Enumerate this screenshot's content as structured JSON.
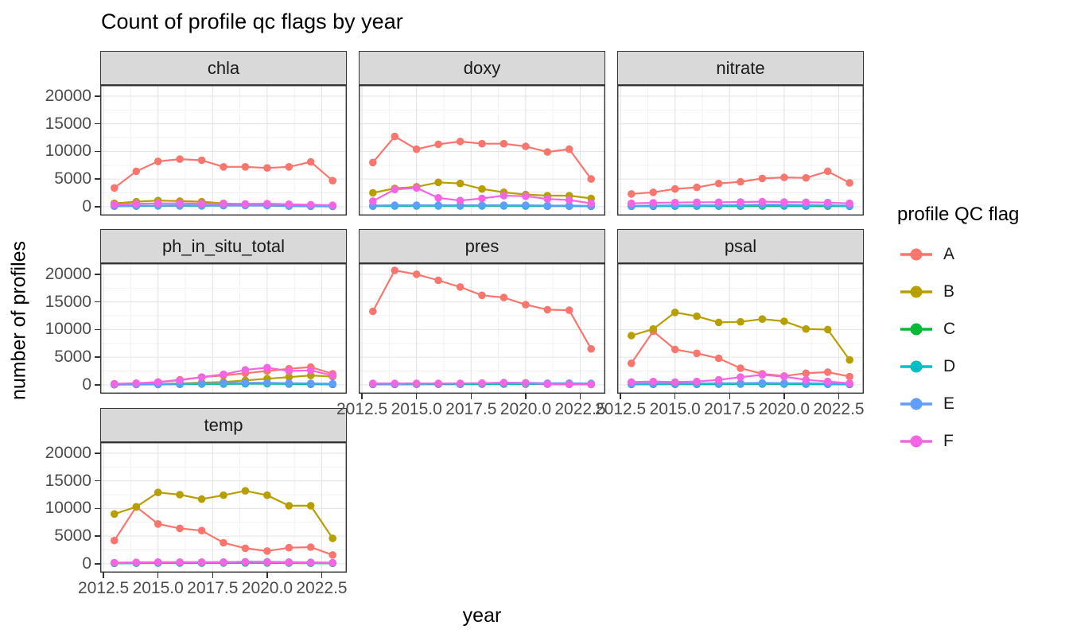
{
  "title": "Count of profile qc flags by year",
  "axes": {
    "x_label": "year",
    "y_label": "number of profiles",
    "x_ticks": [
      "2012.5",
      "2015.0",
      "2017.5",
      "2020.0",
      "2022.5"
    ],
    "x_tick_values": [
      2012.5,
      2015.0,
      2017.5,
      2020.0,
      2022.5
    ],
    "y_ticks": [
      "20000",
      "15000",
      "10000",
      "5000",
      "0"
    ],
    "y_tick_values": [
      20000,
      15000,
      10000,
      5000,
      0
    ]
  },
  "legend": {
    "title": "profile QC flag",
    "entries": [
      {
        "label": "A",
        "color": "#F8766D"
      },
      {
        "label": "B",
        "color": "#B79F00"
      },
      {
        "label": "C",
        "color": "#00BA38"
      },
      {
        "label": "D",
        "color": "#00BFC4"
      },
      {
        "label": "E",
        "color": "#619CFF"
      },
      {
        "label": "F",
        "color": "#F564E3"
      }
    ]
  },
  "chart_data": {
    "type": "line",
    "title": "Count of profile qc flags by year",
    "xlabel": "year",
    "ylabel": "number of profiles",
    "x": [
      2013,
      2014,
      2015,
      2016,
      2017,
      2018,
      2019,
      2020,
      2021,
      2022,
      2023
    ],
    "xlim": [
      2012.35,
      2023.65
    ],
    "ylim": [
      -1600,
      22000
    ],
    "grid": true,
    "legend_position": "right",
    "facet_columns": 3,
    "facets": [
      {
        "name": "chla",
        "series": [
          {
            "name": "A",
            "color": "#F8766D",
            "values": [
              3400,
              6400,
              8200,
              8600,
              8400,
              7200,
              7200,
              7000,
              7200,
              8100,
              4700
            ]
          },
          {
            "name": "B",
            "color": "#B79F00",
            "values": [
              600,
              900,
              1100,
              1000,
              900,
              600,
              400,
              300,
              200,
              150,
              100
            ]
          },
          {
            "name": "C",
            "color": "#00BA38",
            "values": [
              100,
              100,
              150,
              150,
              150,
              200,
              250,
              200,
              100,
              80,
              50
            ]
          },
          {
            "name": "D",
            "color": "#00BFC4",
            "values": [
              150,
              150,
              200,
              250,
              200,
              250,
              300,
              250,
              150,
              100,
              80
            ]
          },
          {
            "name": "E",
            "color": "#619CFF",
            "values": [
              100,
              150,
              200,
              200,
              200,
              200,
              200,
              200,
              150,
              120,
              100
            ]
          },
          {
            "name": "F",
            "color": "#F564E3",
            "values": [
              400,
              500,
              600,
              600,
              550,
              550,
              500,
              550,
              450,
              350,
              250
            ]
          }
        ]
      },
      {
        "name": "doxy",
        "series": [
          {
            "name": "A",
            "color": "#F8766D",
            "values": [
              8000,
              12700,
              10400,
              11300,
              11800,
              11400,
              11400,
              10900,
              9900,
              10400,
              5000
            ]
          },
          {
            "name": "B",
            "color": "#B79F00",
            "values": [
              2500,
              3300,
              3600,
              4400,
              4200,
              3200,
              2600,
              2200,
              2000,
              2000,
              1500
            ]
          },
          {
            "name": "C",
            "color": "#00BA38",
            "values": [
              100,
              120,
              150,
              150,
              150,
              150,
              150,
              120,
              100,
              100,
              80
            ]
          },
          {
            "name": "D",
            "color": "#00BFC4",
            "values": [
              150,
              150,
              200,
              200,
              200,
              200,
              200,
              150,
              150,
              120,
              100
            ]
          },
          {
            "name": "E",
            "color": "#619CFF",
            "values": [
              200,
              250,
              250,
              250,
              250,
              250,
              250,
              250,
              200,
              200,
              150
            ]
          },
          {
            "name": "F",
            "color": "#F564E3",
            "values": [
              1000,
              3100,
              3400,
              1600,
              1100,
              1500,
              2000,
              1900,
              1400,
              1200,
              600
            ]
          }
        ]
      },
      {
        "name": "nitrate",
        "series": [
          {
            "name": "A",
            "color": "#F8766D",
            "values": [
              2300,
              2600,
              3200,
              3500,
              4200,
              4500,
              5100,
              5300,
              5200,
              6400,
              4300
            ]
          },
          {
            "name": "B",
            "color": "#B79F00",
            "values": [
              100,
              150,
              200,
              200,
              200,
              250,
              250,
              250,
              200,
              200,
              150
            ]
          },
          {
            "name": "C",
            "color": "#00BA38",
            "values": [
              80,
              80,
              100,
              100,
              100,
              100,
              120,
              120,
              100,
              100,
              80
            ]
          },
          {
            "name": "D",
            "color": "#00BFC4",
            "values": [
              100,
              120,
              150,
              150,
              150,
              200,
              250,
              200,
              150,
              250,
              100
            ]
          },
          {
            "name": "E",
            "color": "#619CFF",
            "values": [
              150,
              200,
              250,
              250,
              250,
              300,
              350,
              350,
              300,
              250,
              200
            ]
          },
          {
            "name": "F",
            "color": "#F564E3",
            "values": [
              600,
              700,
              750,
              800,
              800,
              850,
              900,
              850,
              800,
              750,
              600
            ]
          }
        ]
      },
      {
        "name": "ph_in_situ_total",
        "series": [
          {
            "name": "A",
            "color": "#F8766D",
            "values": [
              150,
              250,
              500,
              900,
              1400,
              1700,
              2100,
              2500,
              2900,
              3200,
              2000
            ]
          },
          {
            "name": "B",
            "color": "#B79F00",
            "values": [
              50,
              100,
              150,
              250,
              400,
              500,
              800,
              1100,
              1400,
              1700,
              1500
            ]
          },
          {
            "name": "C",
            "color": "#00BA38",
            "values": [
              30,
              50,
              80,
              100,
              150,
              150,
              200,
              200,
              150,
              100,
              80
            ]
          },
          {
            "name": "D",
            "color": "#00BFC4",
            "values": [
              50,
              80,
              100,
              150,
              200,
              200,
              250,
              250,
              200,
              150,
              100
            ]
          },
          {
            "name": "E",
            "color": "#619CFF",
            "values": [
              50,
              100,
              150,
              200,
              250,
              300,
              350,
              350,
              300,
              250,
              200
            ]
          },
          {
            "name": "F",
            "color": "#F564E3",
            "values": [
              200,
              300,
              500,
              800,
              1400,
              1900,
              2700,
              3100,
              2500,
              2600,
              1700
            ]
          }
        ]
      },
      {
        "name": "pres",
        "series": [
          {
            "name": "A",
            "color": "#F8766D",
            "values": [
              13300,
              20700,
              20000,
              18900,
              17700,
              16200,
              15800,
              14500,
              13600,
              13500,
              6500
            ]
          },
          {
            "name": "B",
            "color": "#B79F00",
            "values": [
              100,
              120,
              150,
              150,
              150,
              150,
              150,
              150,
              120,
              100,
              80
            ]
          },
          {
            "name": "C",
            "color": "#00BA38",
            "values": [
              80,
              80,
              100,
              100,
              100,
              120,
              150,
              150,
              120,
              100,
              80
            ]
          },
          {
            "name": "D",
            "color": "#00BFC4",
            "values": [
              100,
              100,
              120,
              150,
              150,
              150,
              150,
              150,
              120,
              100,
              80
            ]
          },
          {
            "name": "E",
            "color": "#619CFF",
            "values": [
              150,
              150,
              200,
              200,
              250,
              300,
              400,
              350,
              300,
              300,
              250
            ]
          },
          {
            "name": "F",
            "color": "#F564E3",
            "values": [
              250,
              250,
              250,
              250,
              250,
              300,
              350,
              300,
              150,
              100,
              80
            ]
          }
        ]
      },
      {
        "name": "psal",
        "series": [
          {
            "name": "A",
            "color": "#F8766D",
            "values": [
              3900,
              9700,
              6400,
              5700,
              4800,
              3000,
              2000,
              1600,
              2100,
              2300,
              1500
            ]
          },
          {
            "name": "B",
            "color": "#B79F00",
            "values": [
              8900,
              10100,
              13100,
              12400,
              11300,
              11400,
              11900,
              11500,
              10100,
              10000,
              4500
            ]
          },
          {
            "name": "C",
            "color": "#00BA38",
            "values": [
              80,
              100,
              100,
              100,
              120,
              150,
              150,
              150,
              120,
              100,
              80
            ]
          },
          {
            "name": "D",
            "color": "#00BFC4",
            "values": [
              100,
              120,
              150,
              150,
              150,
              200,
              200,
              200,
              150,
              120,
              100
            ]
          },
          {
            "name": "E",
            "color": "#619CFF",
            "values": [
              200,
              250,
              250,
              250,
              300,
              300,
              350,
              300,
              300,
              250,
              200
            ]
          },
          {
            "name": "F",
            "color": "#F564E3",
            "values": [
              500,
              600,
              500,
              600,
              900,
              1400,
              1800,
              1500,
              900,
              600,
              300
            ]
          }
        ]
      },
      {
        "name": "temp",
        "series": [
          {
            "name": "A",
            "color": "#F8766D",
            "values": [
              4200,
              10300,
              7200,
              6400,
              6000,
              3800,
              2800,
              2300,
              2900,
              3000,
              1600
            ]
          },
          {
            "name": "B",
            "color": "#B79F00",
            "values": [
              9000,
              10300,
              12900,
              12500,
              11700,
              12400,
              13200,
              12400,
              10500,
              10500,
              4600
            ]
          },
          {
            "name": "C",
            "color": "#00BA38",
            "values": [
              80,
              100,
              120,
              120,
              120,
              150,
              150,
              150,
              120,
              100,
              80
            ]
          },
          {
            "name": "D",
            "color": "#00BFC4",
            "values": [
              100,
              120,
              150,
              150,
              150,
              200,
              200,
              200,
              150,
              120,
              100
            ]
          },
          {
            "name": "E",
            "color": "#619CFF",
            "values": [
              150,
              200,
              250,
              250,
              250,
              300,
              350,
              350,
              300,
              250,
              200
            ]
          },
          {
            "name": "F",
            "color": "#F564E3",
            "values": [
              200,
              250,
              300,
              300,
              300,
              300,
              350,
              300,
              250,
              200,
              150
            ]
          }
        ]
      }
    ]
  }
}
